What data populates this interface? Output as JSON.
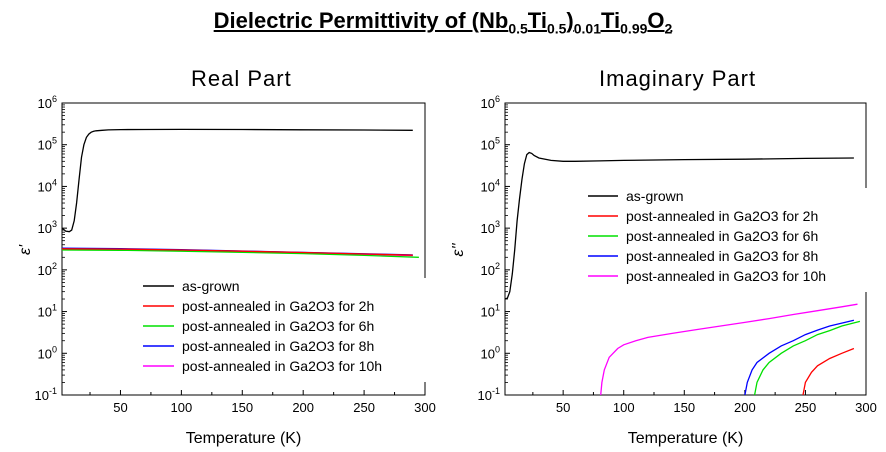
{
  "title": {
    "prefix": "Dielectric Permittivity of (Nb",
    "s1": "0.5",
    "t2": "Ti",
    "s2": "0.5",
    "t3": ")",
    "s3": "0.01",
    "t4": "Ti",
    "s4": "0.99",
    "t5": "O",
    "s5": "2"
  },
  "chart_data": [
    {
      "type": "line",
      "title": "Real Part",
      "xlabel": "Temperature (K)",
      "ylabel": "ε'",
      "xlim": [
        2,
        300
      ],
      "ylim": [
        0.1,
        1000000
      ],
      "yscale": "log",
      "x_ticks": [
        50,
        100,
        150,
        200,
        250,
        300
      ],
      "y_tick_labels": [
        "10^-1",
        "10^0",
        "10^1",
        "10^2",
        "10^3",
        "10^4",
        "10^5",
        "10^6"
      ],
      "legend_position": "bottom-right",
      "series": [
        {
          "name": "as-grown",
          "color": "#000000",
          "x": [
            2,
            5,
            8,
            10,
            12,
            14,
            16,
            18,
            20,
            22,
            24,
            26,
            28,
            30,
            35,
            40,
            50,
            70,
            100,
            150,
            200,
            250,
            290
          ],
          "y": [
            1000,
            850,
            820,
            900,
            1500,
            4000,
            15000,
            50000,
            100000,
            150000,
            180000,
            200000,
            210000,
            215000,
            222000,
            226000,
            230000,
            232000,
            233000,
            232000,
            228000,
            225000,
            222000
          ]
        },
        {
          "name": "post-annealed in Ga2O3 for 2h",
          "color": "#ff0000",
          "x": [
            2,
            50,
            100,
            150,
            200,
            250,
            290
          ],
          "y": [
            320,
            315,
            300,
            280,
            260,
            240,
            225
          ]
        },
        {
          "name": "post-annealed in Ga2O3 for 6h",
          "color": "#00e000",
          "x": [
            2,
            50,
            100,
            150,
            200,
            250,
            295
          ],
          "y": [
            300,
            295,
            280,
            262,
            245,
            222,
            200
          ]
        },
        {
          "name": "post-annealed in Ga2O3 for 8h",
          "color": "#0000ff",
          "x": [
            2,
            50,
            100,
            150,
            200,
            250,
            290
          ],
          "y": [
            330,
            322,
            305,
            283,
            262,
            243,
            228
          ]
        },
        {
          "name": "post-annealed in Ga2O3 for 10h",
          "color": "#ff00ff",
          "x": [
            2,
            50,
            100,
            150,
            200,
            250,
            290
          ],
          "y": [
            310,
            305,
            290,
            272,
            253,
            235,
            220
          ]
        }
      ]
    },
    {
      "type": "line",
      "title": "Imaginary Part",
      "xlabel": "Temperature (K)",
      "ylabel": "ε''",
      "xlim": [
        2,
        300
      ],
      "ylim": [
        0.1,
        1000000
      ],
      "yscale": "log",
      "x_ticks": [
        50,
        100,
        150,
        200,
        250,
        300
      ],
      "y_tick_labels": [
        "10^-1",
        "10^0",
        "10^1",
        "10^2",
        "10^3",
        "10^4",
        "10^5",
        "10^6"
      ],
      "legend_position": "center",
      "series": [
        {
          "name": "as-grown",
          "color": "#000000",
          "x": [
            2,
            4,
            6,
            8,
            10,
            12,
            14,
            16,
            18,
            20,
            22,
            24,
            26,
            30,
            40,
            50,
            60,
            80,
            100,
            150,
            200,
            250,
            290
          ],
          "y": [
            20,
            21,
            30,
            80,
            300,
            1500,
            5000,
            15000,
            35000,
            58000,
            65000,
            62000,
            55000,
            48000,
            42000,
            40000,
            40000,
            41000,
            42000,
            44000,
            45000,
            47000,
            48000
          ]
        },
        {
          "name": "post-annealed in Ga2O3 for 2h",
          "color": "#ff0000",
          "x": [
            248,
            250,
            255,
            260,
            270,
            280,
            290
          ],
          "y": [
            0.1,
            0.2,
            0.35,
            0.5,
            0.75,
            1.0,
            1.3
          ]
        },
        {
          "name": "post-annealed in Ga2O3 for 6h",
          "color": "#00e000",
          "x": [
            208,
            210,
            215,
            220,
            230,
            240,
            250,
            260,
            270,
            280,
            295
          ],
          "y": [
            0.1,
            0.2,
            0.4,
            0.6,
            1.0,
            1.5,
            2.0,
            2.8,
            3.5,
            4.5,
            5.8
          ]
        },
        {
          "name": "post-annealed in Ga2O3 for 8h",
          "color": "#0000ff",
          "x": [
            200,
            202,
            206,
            210,
            220,
            230,
            240,
            250,
            260,
            270,
            280,
            290
          ],
          "y": [
            0.1,
            0.2,
            0.4,
            0.6,
            1.0,
            1.5,
            2.0,
            2.8,
            3.6,
            4.5,
            5.3,
            6.2
          ]
        },
        {
          "name": "post-annealed in Ga2O3 for 10h",
          "color": "#ff00ff",
          "x": [
            81,
            82,
            84,
            88,
            95,
            100,
            110,
            120,
            140,
            160,
            180,
            200,
            220,
            240,
            260,
            280,
            293
          ],
          "y": [
            0.1,
            0.2,
            0.4,
            0.8,
            1.3,
            1.6,
            2.0,
            2.4,
            3.0,
            3.7,
            4.5,
            5.5,
            6.8,
            8.5,
            10.5,
            13,
            15
          ]
        }
      ]
    }
  ]
}
